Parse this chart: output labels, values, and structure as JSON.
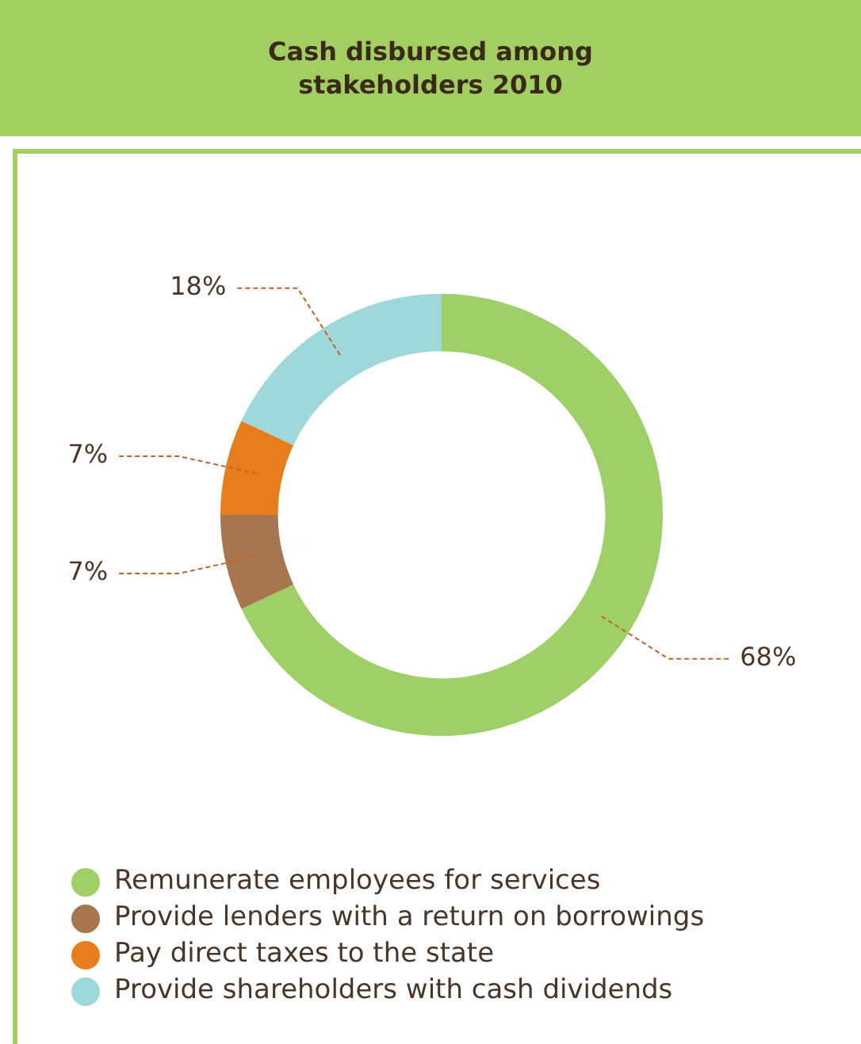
{
  "chart_data": {
    "type": "donut",
    "title": "Cash disbursed among stakeholders 2010",
    "categories": [
      "Remunerate employees for services",
      "Provide lenders with a return on borrowings",
      "Pay direct taxes to the state",
      "Provide shareholders with cash dividends"
    ],
    "values": [
      68,
      7,
      7,
      18
    ],
    "colors": [
      "#9fcf67",
      "#a8764e",
      "#e87d1e",
      "#9ed8db"
    ],
    "value_labels": [
      "68%",
      "7%",
      "7%",
      "18%"
    ],
    "legend": "bottom"
  }
}
